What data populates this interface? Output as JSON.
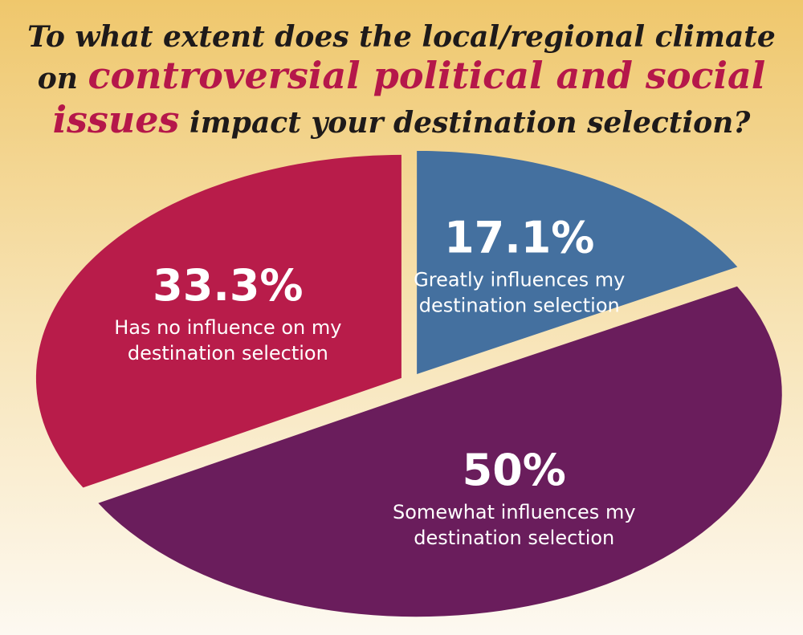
{
  "chart_data": {
    "type": "pie",
    "title": [
      "To what extent does the local/regional climate",
      "on",
      "controversial political and social",
      "issues",
      "impact your destination selection?"
    ],
    "highlight_color": "#b5174a",
    "categories": [
      [
        "Greatly influences my",
        "destination selection"
      ],
      [
        "Somewhat influences my",
        "destination selection"
      ],
      [
        "Has no influence on my",
        "destination selection"
      ]
    ],
    "values": [
      17.1,
      50,
      33.3
    ],
    "value_labels": [
      "17.1%",
      "50%",
      "33.3%"
    ],
    "colors": [
      "#44709f",
      "#6a1d5c",
      "#b81c4a"
    ]
  }
}
